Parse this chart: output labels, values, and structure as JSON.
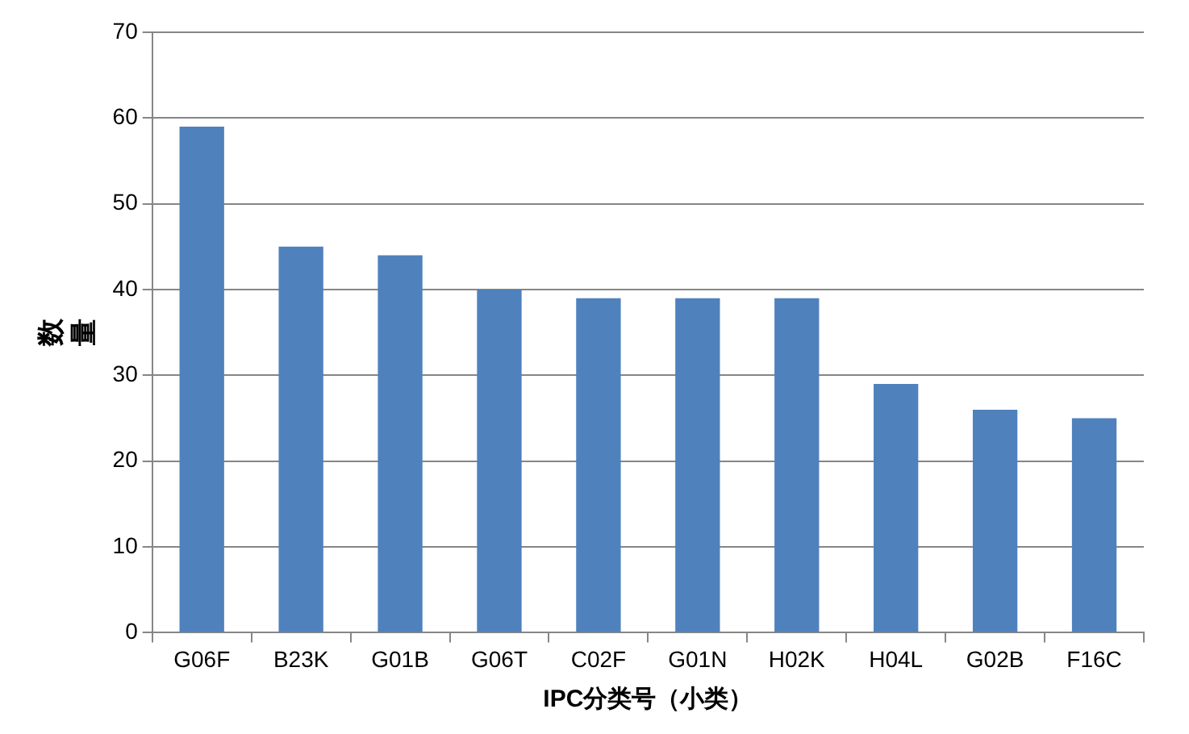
{
  "chart_data": {
    "type": "bar",
    "xlabel": "IPC分类号（小类）",
    "ylabel": "数量",
    "categories": [
      "G06F",
      "B23K",
      "G01B",
      "G06T",
      "C02F",
      "G01N",
      "H02K",
      "H04L",
      "G02B",
      "F16C"
    ],
    "values": [
      59,
      45,
      44,
      40,
      39,
      39,
      39,
      29,
      26,
      25
    ],
    "color": "#4f81bd",
    "ylim": [
      0,
      70
    ],
    "yticks": [
      0,
      10,
      20,
      30,
      40,
      50,
      60,
      70
    ],
    "grid": "y"
  }
}
